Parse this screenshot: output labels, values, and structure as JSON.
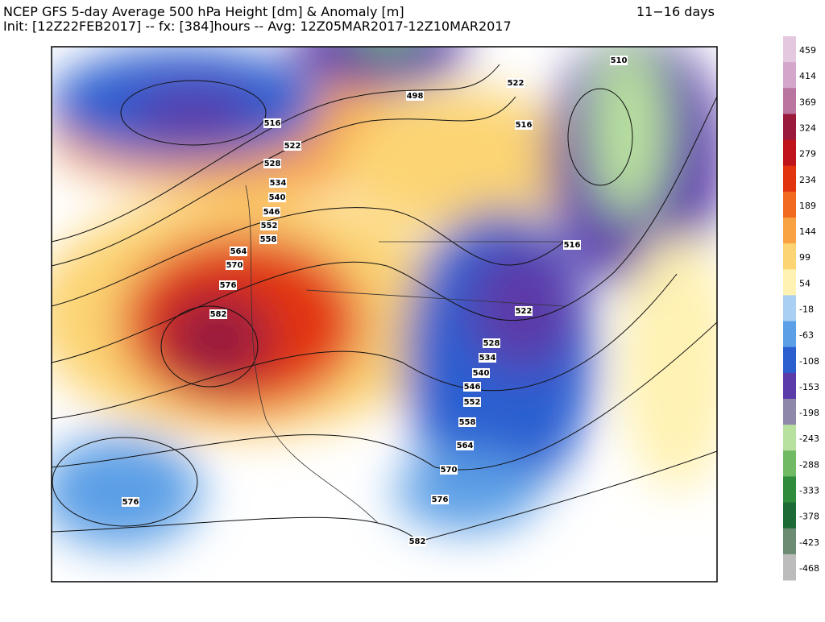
{
  "header": {
    "title": "NCEP GFS 5-day Average 500 hPa Height [dm] & Anomaly [m]",
    "range": "11−16 days",
    "subtitle": "Init: [12Z22FEB2017] -- fx: [384]hours -- Avg: 12Z05MAR2017-12Z10MAR2017"
  },
  "colorbar": {
    "labels": [
      459,
      414,
      369,
      324,
      279,
      234,
      189,
      144,
      99,
      54,
      -18,
      -63,
      -108,
      -153,
      -198,
      -243,
      -288,
      -333,
      -378,
      -423,
      -468
    ],
    "colors": [
      "#e4c8e0",
      "#d4a6cc",
      "#b9749f",
      "#9a1a3c",
      "#c0141c",
      "#e2340f",
      "#f16a20",
      "#f8a243",
      "#fcd473",
      "#fff2b3",
      "#a9d0f2",
      "#5b9fe6",
      "#2b5fd0",
      "#5b3ba8",
      "#8f88aa",
      "#b8e09e",
      "#70ba64",
      "#2f8c3c",
      "#1c6a35",
      "#6b8b73",
      "#bcbcbc"
    ]
  },
  "contour_labels": [
    498,
    510,
    522,
    516,
    516,
    522,
    528,
    534,
    540,
    546,
    552,
    558,
    564,
    570,
    576,
    582,
    516,
    522,
    528,
    534,
    540,
    546,
    552,
    558,
    564,
    570,
    576,
    582,
    576
  ]
}
